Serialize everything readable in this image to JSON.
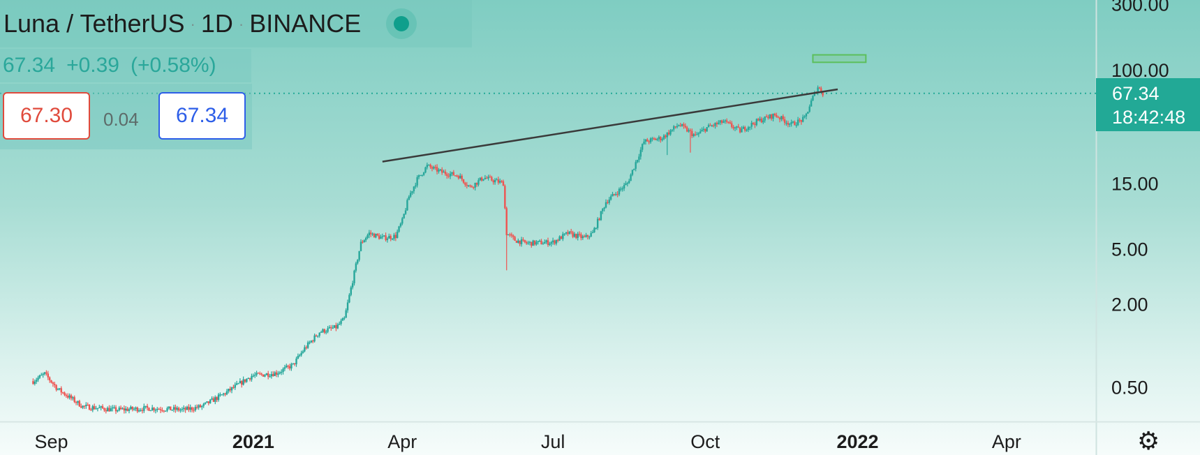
{
  "header": {
    "symbol": "Luna / TetherUS",
    "interval": "1D",
    "exchange": "BINANCE",
    "separator": "·"
  },
  "change": {
    "last": "67.34",
    "abs": "+0.39",
    "pct": "(+0.58%)"
  },
  "quote": {
    "sell": "67.30",
    "spread": "0.04",
    "buy": "67.34"
  },
  "price_tag": {
    "price": "67.34",
    "countdown": "18:42:48"
  },
  "colors": {
    "up": "#26a69a",
    "down": "#ef5350",
    "accent": "#22a996",
    "trendline": "#3a3a3a",
    "target_box": "#5cbf5c"
  },
  "icons": {
    "settings": "gear-icon"
  },
  "chart_data": {
    "type": "candlestick",
    "y_scale": "log",
    "ylim": [
      0.28,
      320
    ],
    "y_ticks": [
      {
        "value": 300,
        "label": "300.00"
      },
      {
        "value": 100,
        "label": "100.00"
      },
      {
        "value": 15,
        "label": "15.00"
      },
      {
        "value": 5,
        "label": "5.00"
      },
      {
        "value": 2,
        "label": "2.00"
      },
      {
        "value": 0.5,
        "label": "0.50"
      }
    ],
    "xlim": [
      "2020-08-01",
      "2022-05-25"
    ],
    "x_ticks": [
      {
        "date": "2020-09-01",
        "label": "Sep",
        "bold": false
      },
      {
        "date": "2021-01-01",
        "label": "2021",
        "bold": true
      },
      {
        "date": "2021-04-01",
        "label": "Apr",
        "bold": false
      },
      {
        "date": "2021-07-01",
        "label": "Jul",
        "bold": false
      },
      {
        "date": "2021-10-01",
        "label": "Oct",
        "bold": false
      },
      {
        "date": "2022-01-01",
        "label": "2022",
        "bold": true
      },
      {
        "date": "2022-04-01",
        "label": "Apr",
        "bold": false
      }
    ],
    "last_price": 67.34,
    "price_path": [
      [
        "2020-08-21",
        0.55
      ],
      [
        "2020-08-28",
        0.62
      ],
      [
        "2020-09-05",
        0.48
      ],
      [
        "2020-09-20",
        0.36
      ],
      [
        "2020-10-10",
        0.34
      ],
      [
        "2020-10-31",
        0.35
      ],
      [
        "2020-11-20",
        0.34
      ],
      [
        "2020-12-01",
        0.36
      ],
      [
        "2020-12-15",
        0.45
      ],
      [
        "2020-12-31",
        0.6
      ],
      [
        "2021-01-15",
        0.63
      ],
      [
        "2021-01-25",
        0.72
      ],
      [
        "2021-02-01",
        0.95
      ],
      [
        "2021-02-10",
        1.25
      ],
      [
        "2021-02-20",
        1.35
      ],
      [
        "2021-02-25",
        1.55
      ],
      [
        "2021-03-01",
        2.6
      ],
      [
        "2021-03-07",
        5.5
      ],
      [
        "2021-03-12",
        6.5
      ],
      [
        "2021-03-20",
        6.0
      ],
      [
        "2021-03-28",
        6.2
      ],
      [
        "2021-04-01",
        8.0
      ],
      [
        "2021-04-05",
        12.0
      ],
      [
        "2021-04-10",
        16.0
      ],
      [
        "2021-04-16",
        20.0
      ],
      [
        "2021-04-25",
        18.0
      ],
      [
        "2021-05-05",
        17.0
      ],
      [
        "2021-05-12",
        14.0
      ],
      [
        "2021-05-20",
        16.5
      ],
      [
        "2021-06-01",
        15.0
      ],
      [
        "2021-06-03",
        6.5
      ],
      [
        "2021-06-08",
        5.8
      ],
      [
        "2021-06-15",
        5.5
      ],
      [
        "2021-07-01",
        5.6
      ],
      [
        "2021-07-10",
        6.5
      ],
      [
        "2021-07-20",
        6.0
      ],
      [
        "2021-07-25",
        6.5
      ],
      [
        "2021-08-02",
        11.0
      ],
      [
        "2021-08-15",
        15.0
      ],
      [
        "2021-08-25",
        30.0
      ],
      [
        "2021-09-05",
        32.0
      ],
      [
        "2021-09-15",
        40.0
      ],
      [
        "2021-09-25",
        33.0
      ],
      [
        "2021-10-02",
        38.0
      ],
      [
        "2021-10-12",
        42.0
      ],
      [
        "2021-10-22",
        36.0
      ],
      [
        "2021-11-01",
        42.0
      ],
      [
        "2021-11-12",
        47.0
      ],
      [
        "2021-11-22",
        40.0
      ],
      [
        "2021-11-30",
        44.0
      ],
      [
        "2021-12-05",
        63.0
      ],
      [
        "2021-12-08",
        75.0
      ],
      [
        "2021-12-11",
        67.34
      ]
    ],
    "dips": [
      [
        "2021-06-03",
        3.5
      ],
      [
        "2021-09-08",
        24.0
      ],
      [
        "2021-09-22",
        25.0
      ]
    ],
    "trendline": [
      [
        "2021-03-20",
        21.5
      ],
      [
        "2021-12-20",
        72.0
      ]
    ],
    "target_zone": {
      "x": [
        "2021-12-05",
        "2022-01-06"
      ],
      "y": [
        113,
        128
      ]
    }
  }
}
